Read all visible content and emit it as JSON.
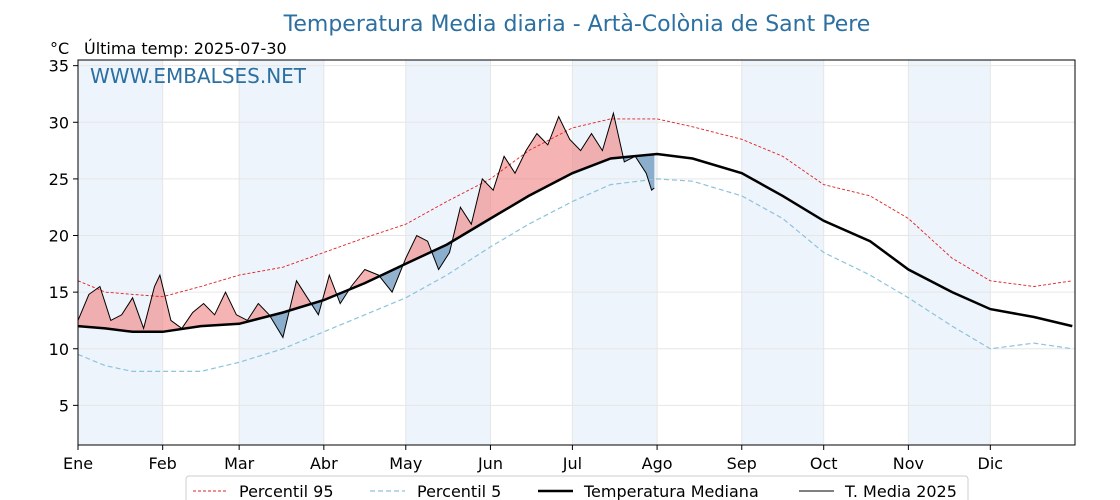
{
  "chart_data": {
    "type": "line",
    "title": "Temperatura Media diaria - Artà-Colònia de Sant Pere",
    "unit_label": "°C",
    "last_temp_label": "Última temp: 2025-07-30",
    "watermark": "WWW.EMBALSES.NET",
    "ylim": [
      1.5,
      35.5
    ],
    "yticks": [
      5,
      10,
      15,
      20,
      25,
      30,
      35
    ],
    "xlim_days": [
      0,
      365
    ],
    "month_labels": [
      "Ene",
      "Feb",
      "Mar",
      "Abr",
      "May",
      "Jun",
      "Jul",
      "Ago",
      "Sep",
      "Oct",
      "Nov",
      "Dic"
    ],
    "month_start_days": [
      0,
      31,
      59,
      90,
      120,
      151,
      181,
      212,
      243,
      273,
      304,
      334
    ],
    "grid": true,
    "legend_position": "bottom",
    "legend": [
      "Percentil 95",
      "Percentil 5",
      "Temperatura Mediana",
      "T. Media 2025"
    ],
    "colors": {
      "p95": "#e02020",
      "p5": "#8cc4dc",
      "median": "#000000",
      "t2025": "#000000",
      "above_fill": "#f08080",
      "below_fill": "#4a7fae",
      "band": "#eef4fb",
      "title": "#2c6fa1"
    },
    "series": [
      {
        "key": "p95",
        "name": "Percentil 95",
        "days": [
          0,
          10,
          20,
          31,
          45,
          59,
          75,
          90,
          105,
          120,
          135,
          151,
          165,
          181,
          195,
          212,
          225,
          243,
          258,
          273,
          290,
          304,
          320,
          334,
          350,
          364
        ],
        "values": [
          16.0,
          15.0,
          14.8,
          14.6,
          15.5,
          16.5,
          17.2,
          18.5,
          19.8,
          21.0,
          23.0,
          25.0,
          27.5,
          29.5,
          30.3,
          30.3,
          29.6,
          28.5,
          27.0,
          24.5,
          23.5,
          21.5,
          18.0,
          16.0,
          15.5,
          16.0
        ]
      },
      {
        "key": "p5",
        "name": "Percentil 5",
        "days": [
          0,
          10,
          20,
          31,
          45,
          59,
          75,
          90,
          105,
          120,
          135,
          151,
          165,
          181,
          195,
          212,
          225,
          243,
          258,
          273,
          290,
          304,
          320,
          334,
          350,
          364
        ],
        "values": [
          9.5,
          8.5,
          8.0,
          8.0,
          8.0,
          8.8,
          10.0,
          11.5,
          13.0,
          14.5,
          16.5,
          19.0,
          21.0,
          23.0,
          24.5,
          25.0,
          24.8,
          23.5,
          21.5,
          18.5,
          16.5,
          14.5,
          12.0,
          10.0,
          10.5,
          10.0
        ]
      },
      {
        "key": "median",
        "name": "Temperatura Mediana",
        "days": [
          0,
          10,
          20,
          31,
          45,
          59,
          75,
          90,
          105,
          120,
          135,
          151,
          165,
          181,
          195,
          212,
          225,
          243,
          258,
          273,
          290,
          304,
          320,
          334,
          350,
          364
        ],
        "values": [
          12.0,
          11.8,
          11.5,
          11.5,
          12.0,
          12.2,
          13.2,
          14.3,
          15.8,
          17.5,
          19.2,
          21.5,
          23.5,
          25.5,
          26.8,
          27.2,
          26.8,
          25.5,
          23.5,
          21.3,
          19.5,
          17.0,
          15.0,
          13.5,
          12.8,
          12.0
        ]
      },
      {
        "key": "t2025",
        "name": "T. Media 2025",
        "days": [
          0,
          4,
          8,
          12,
          16,
          20,
          24,
          28,
          30,
          34,
          38,
          42,
          46,
          50,
          54,
          58,
          62,
          66,
          70,
          75,
          80,
          84,
          88,
          92,
          96,
          100,
          105,
          110,
          115,
          120,
          124,
          128,
          132,
          136,
          140,
          144,
          148,
          152,
          156,
          160,
          164,
          168,
          172,
          176,
          180,
          184,
          188,
          192,
          196,
          200,
          204,
          208,
          210,
          211
        ],
        "values": [
          12.5,
          14.8,
          15.5,
          12.5,
          13.0,
          14.5,
          11.8,
          15.5,
          16.5,
          12.5,
          11.8,
          13.2,
          14.0,
          13.0,
          15.0,
          13.0,
          12.5,
          14.0,
          13.0,
          11.0,
          16.0,
          14.5,
          13.0,
          16.5,
          14.0,
          15.5,
          17.0,
          16.5,
          15.0,
          18.0,
          20.0,
          19.5,
          17.0,
          18.5,
          22.5,
          21.0,
          25.0,
          24.0,
          27.0,
          25.5,
          27.5,
          29.0,
          28.0,
          30.5,
          28.5,
          27.5,
          29.0,
          27.5,
          30.8,
          26.5,
          27.0,
          25.5,
          24.0,
          24.2
        ]
      }
    ]
  }
}
